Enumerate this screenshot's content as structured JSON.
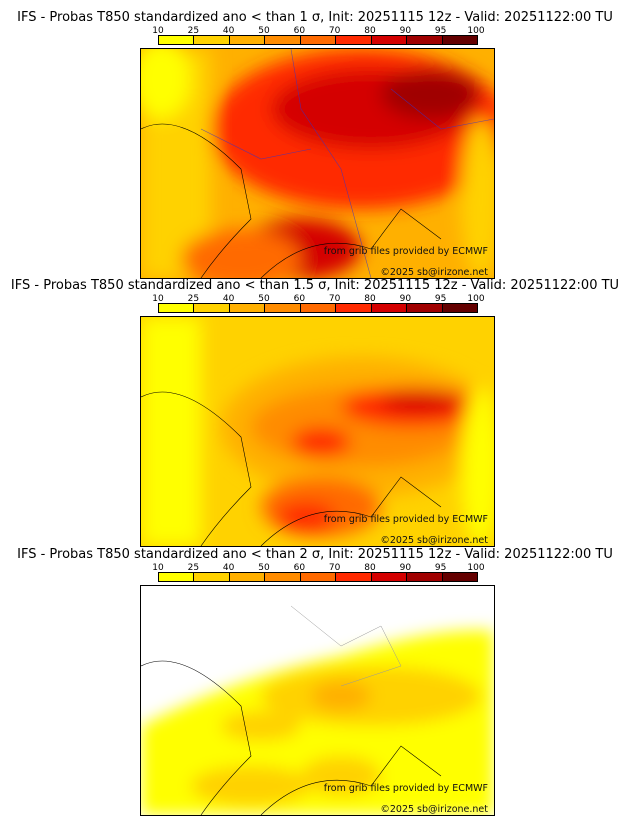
{
  "colorbar": {
    "ticks": [
      "10",
      "25",
      "40",
      "50",
      "60",
      "70",
      "80",
      "90",
      "95",
      "100"
    ],
    "colors": [
      "#ffff00",
      "#ffd200",
      "#ffb000",
      "#ff8c00",
      "#ff6a00",
      "#ff2a00",
      "#d40000",
      "#a00000",
      "#640000"
    ]
  },
  "panels": [
    {
      "title": "IFS - Probas T850  standardized ano < than 1 σ, Init: 20251115 12z - Valid: 20251122:00 TU",
      "credit": "from grib files provided by ECMWF",
      "copyright": "©2025 sb@irizone.net"
    },
    {
      "title": "IFS - Probas T850  standardized ano < than 1.5 σ, Init: 20251115 12z - Valid: 20251122:00 TU",
      "credit": "from grib files provided by ECMWF",
      "copyright": "©2025 sb@irizone.net"
    },
    {
      "title": "IFS - Probas T850  standardized ano < than 2 σ, Init: 20251115 12z - Valid: 20251122:00 TU",
      "credit": "from grib files provided by ECMWF",
      "copyright": "©2025 sb@irizone.net"
    }
  ]
}
